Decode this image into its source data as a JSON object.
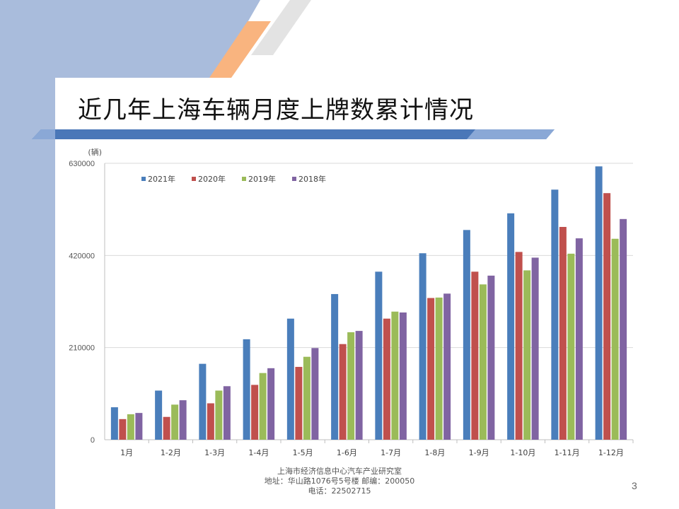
{
  "slide": {
    "title": "近几年上海车辆月度上牌数累计情况",
    "footer": {
      "org": "上海市经济信息中心汽车产业研究室",
      "address": "地址：华山路1076号5号楼    邮编：200050",
      "phone": "电话：22502715"
    },
    "page_number": "3"
  },
  "colors": {
    "left_band": "#a9bcdc",
    "accent_orange": "#f9b47f",
    "accent_gray": "#e3e3e3",
    "title_bar": "#4a77b8"
  },
  "chart_data": {
    "type": "bar",
    "title": "",
    "xlabel": "",
    "ylabel": "(辆)",
    "ylim": [
      0,
      630000
    ],
    "y_ticks": [
      0,
      210000,
      420000,
      630000
    ],
    "y_tick_labels": [
      "0",
      "210000",
      "420000",
      "630000"
    ],
    "grid": true,
    "legend_position": "top-left",
    "categories": [
      "1月",
      "1-2月",
      "1-3月",
      "1-4月",
      "1-5月",
      "1-6月",
      "1-7月",
      "1-8月",
      "1-9月",
      "1-10月",
      "1-11月",
      "1-12月"
    ],
    "series": [
      {
        "name": "2021年",
        "color": "#4a7ebb",
        "values": [
          74000,
          112000,
          173000,
          229000,
          276000,
          332000,
          383000,
          425000,
          478000,
          516000,
          570000,
          623000
        ]
      },
      {
        "name": "2020年",
        "color": "#c0504d",
        "values": [
          47000,
          52000,
          83000,
          125000,
          166000,
          218000,
          276000,
          323000,
          383000,
          428000,
          485000,
          562000
        ]
      },
      {
        "name": "2019年",
        "color": "#9bbb59",
        "values": [
          58000,
          80000,
          112000,
          152000,
          189000,
          245000,
          292000,
          324000,
          354000,
          386000,
          424000,
          458000
        ]
      },
      {
        "name": "2018年",
        "color": "#8064a2",
        "values": [
          61000,
          90000,
          122000,
          163000,
          209000,
          248000,
          290000,
          333000,
          374000,
          415000,
          459000,
          503000
        ]
      }
    ]
  }
}
